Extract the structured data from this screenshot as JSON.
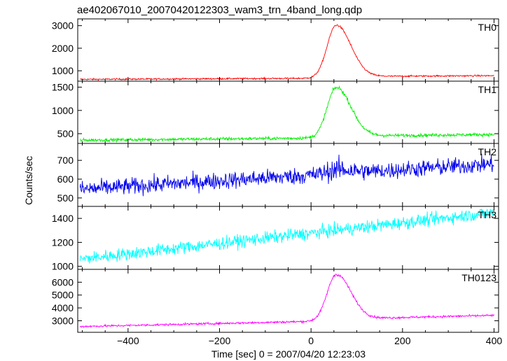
{
  "chart_data": {
    "type": "line",
    "title": "ae402067010_20070420122303_wam3_trn_4band_long.qdp",
    "xlabel": "Time [sec] 0 = 2007/04/20 12:23:03",
    "ylabel": "Counts/sec",
    "xlim": [
      -510,
      410
    ],
    "xticks": [
      -400,
      -200,
      0,
      200,
      400
    ],
    "xtick_labels": [
      "−400",
      "−200",
      "0",
      "200",
      "400"
    ],
    "x_sampling": {
      "start": -505,
      "end": 400,
      "step": 1
    },
    "legend": "none",
    "grid": false,
    "panels": [
      {
        "name": "TH0",
        "color": "#ff0000",
        "ylim": [
          540,
          3300
        ],
        "yticks": [
          1000,
          2000,
          3000
        ],
        "model": {
          "base_start": 620,
          "base_slope": 0.09,
          "peak": 2350,
          "peak_x": 55,
          "rise_width": 28,
          "fall_width": 45,
          "post_level": 80,
          "noise": 25
        }
      },
      {
        "name": "TH1",
        "color": "#00ee00",
        "ylim": [
          290,
          1630
        ],
        "yticks": [
          500,
          1000,
          1500
        ],
        "model": {
          "base_start": 360,
          "base_slope": 0.09,
          "peak": 1080,
          "peak_x": 55,
          "rise_width": 28,
          "fall_width": 45,
          "post_level": 40,
          "noise": 25
        }
      },
      {
        "name": "TH2",
        "color": "#0000ee",
        "ylim": [
          455,
          790
        ],
        "yticks": [
          500,
          600,
          700
        ],
        "model": {
          "base_start": 545,
          "base_slope": 0.15,
          "peak": 22,
          "peak_x": 55,
          "rise_width": 28,
          "fall_width": 45,
          "post_level": 0,
          "noise": 32
        }
      },
      {
        "name": "TH3",
        "color": "#00ffff",
        "ylim": [
          975,
          1500
        ],
        "yticks": [
          1000,
          1200,
          1400
        ],
        "model": {
          "base_start": 1060,
          "base_slope": 0.43,
          "peak": 0,
          "peak_x": 55,
          "rise_width": 28,
          "fall_width": 45,
          "post_level": 0,
          "noise": 38
        }
      },
      {
        "name": "TH0123",
        "color": "#ff00ff",
        "ylim": [
          2100,
          7000
        ],
        "yticks": [
          3000,
          4000,
          5000,
          6000
        ],
        "model": {
          "base_start": 2550,
          "base_slope": 0.79,
          "peak": 3600,
          "peak_x": 55,
          "rise_width": 28,
          "fall_width": 45,
          "post_level": 150,
          "noise": 60
        }
      }
    ]
  }
}
